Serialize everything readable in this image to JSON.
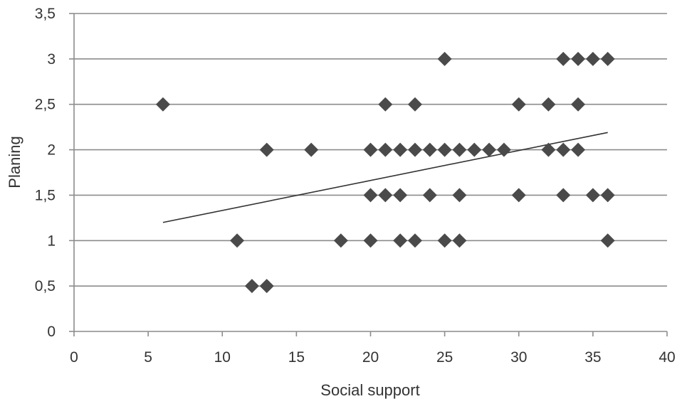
{
  "chart_data": {
    "type": "scatter",
    "xlabel": "Social support",
    "ylabel": "Planing",
    "xlim": [
      0,
      40
    ],
    "ylim": [
      0,
      3.5
    ],
    "x_ticks": [
      0,
      5,
      10,
      15,
      20,
      25,
      30,
      35,
      40
    ],
    "y_ticks": [
      0,
      0.5,
      1,
      1.5,
      2,
      2.5,
      3,
      3.5
    ],
    "x_tick_labels": [
      "0",
      "5",
      "10",
      "15",
      "20",
      "25",
      "30",
      "35",
      "40"
    ],
    "y_tick_labels": [
      "0",
      "0,5",
      "1",
      "1,5",
      "2",
      "2,5",
      "3",
      "3,5"
    ],
    "grid": "horizontal",
    "marker": "diamond",
    "marker_color": "#4a4a4a",
    "points": [
      {
        "x": 25,
        "y": 3
      },
      {
        "x": 33,
        "y": 3
      },
      {
        "x": 34,
        "y": 3
      },
      {
        "x": 35,
        "y": 3
      },
      {
        "x": 36,
        "y": 3
      },
      {
        "x": 6,
        "y": 2.5
      },
      {
        "x": 21,
        "y": 2.5
      },
      {
        "x": 23,
        "y": 2.5
      },
      {
        "x": 30,
        "y": 2.5
      },
      {
        "x": 32,
        "y": 2.5
      },
      {
        "x": 34,
        "y": 2.5
      },
      {
        "x": 13,
        "y": 2
      },
      {
        "x": 16,
        "y": 2
      },
      {
        "x": 20,
        "y": 2
      },
      {
        "x": 21,
        "y": 2
      },
      {
        "x": 22,
        "y": 2
      },
      {
        "x": 23,
        "y": 2
      },
      {
        "x": 24,
        "y": 2
      },
      {
        "x": 25,
        "y": 2
      },
      {
        "x": 26,
        "y": 2
      },
      {
        "x": 27,
        "y": 2
      },
      {
        "x": 28,
        "y": 2
      },
      {
        "x": 29,
        "y": 2
      },
      {
        "x": 32,
        "y": 2
      },
      {
        "x": 33,
        "y": 2
      },
      {
        "x": 34,
        "y": 2
      },
      {
        "x": 20,
        "y": 1.5
      },
      {
        "x": 21,
        "y": 1.5
      },
      {
        "x": 22,
        "y": 1.5
      },
      {
        "x": 24,
        "y": 1.5
      },
      {
        "x": 26,
        "y": 1.5
      },
      {
        "x": 30,
        "y": 1.5
      },
      {
        "x": 33,
        "y": 1.5
      },
      {
        "x": 35,
        "y": 1.5
      },
      {
        "x": 36,
        "y": 1.5
      },
      {
        "x": 11,
        "y": 1
      },
      {
        "x": 18,
        "y": 1
      },
      {
        "x": 20,
        "y": 1
      },
      {
        "x": 22,
        "y": 1
      },
      {
        "x": 23,
        "y": 1
      },
      {
        "x": 25,
        "y": 1
      },
      {
        "x": 26,
        "y": 1
      },
      {
        "x": 36,
        "y": 1
      },
      {
        "x": 12,
        "y": 0.5
      },
      {
        "x": 13,
        "y": 0.5
      }
    ],
    "trendline": {
      "x": [
        6,
        36
      ],
      "y": [
        1.2,
        2.19
      ]
    }
  }
}
